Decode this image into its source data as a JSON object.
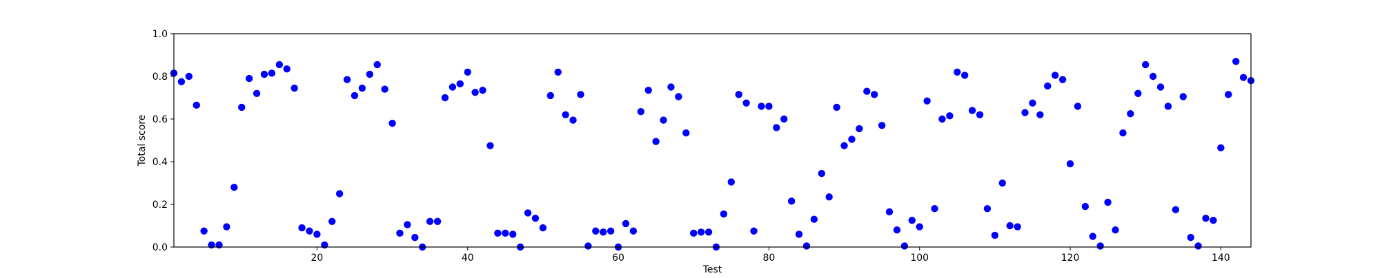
{
  "chart_data": {
    "type": "scatter",
    "title": "",
    "xlabel": "Test",
    "ylabel": "Total score",
    "xlim": [
      1,
      144
    ],
    "ylim": [
      0.0,
      1.0
    ],
    "x_ticks": [
      20,
      40,
      60,
      80,
      100,
      120,
      140
    ],
    "y_ticks": [
      0.0,
      0.2,
      0.4,
      0.6,
      0.8,
      1.0
    ],
    "y_tick_labels": [
      "0.0",
      "0.2",
      "0.4",
      "0.6",
      "0.8",
      "1.0"
    ],
    "grid": false,
    "legend": "none",
    "marker_color": "#0000ff",
    "series": [
      {
        "x": [
          1,
          2,
          3,
          4,
          5,
          6,
          7,
          8,
          9,
          10,
          11,
          12,
          13,
          14,
          15,
          16,
          17,
          18,
          19,
          20,
          21,
          22,
          23,
          24,
          25,
          26,
          27,
          28,
          29,
          30,
          31,
          32,
          33,
          34,
          35,
          36,
          37,
          38,
          39,
          40,
          41,
          42,
          43,
          44,
          45,
          46,
          47,
          48,
          49,
          50,
          51,
          52,
          53,
          54,
          55,
          56,
          57,
          58,
          59,
          60,
          61,
          62,
          63,
          64,
          65,
          66,
          67,
          68,
          69,
          70,
          71,
          72,
          73,
          74,
          75,
          76,
          77,
          78,
          79,
          80,
          81,
          82,
          83,
          84,
          85,
          86,
          87,
          88,
          89,
          90,
          91,
          92,
          93,
          94,
          95,
          96,
          97,
          98,
          99,
          100,
          101,
          102,
          103,
          104,
          105,
          106,
          107,
          108,
          109,
          110,
          111,
          112,
          113,
          114,
          115,
          116,
          117,
          118,
          119,
          120,
          121,
          122,
          123,
          124,
          125,
          126,
          127,
          128,
          129,
          130,
          131,
          132,
          133,
          134,
          135,
          136,
          137,
          138,
          139,
          140,
          141,
          142,
          143,
          144
        ],
        "y": [
          0.815,
          0.775,
          0.8,
          0.665,
          0.075,
          0.01,
          0.01,
          0.095,
          0.28,
          0.655,
          0.79,
          0.72,
          0.81,
          0.815,
          0.855,
          0.835,
          0.745,
          0.09,
          0.075,
          0.06,
          0.01,
          0.12,
          0.25,
          0.785,
          0.71,
          0.745,
          0.81,
          0.855,
          0.74,
          0.58,
          0.065,
          0.105,
          0.045,
          0.0,
          0.12,
          0.12,
          0.7,
          0.75,
          0.765,
          0.82,
          0.725,
          0.735,
          0.475,
          0.065,
          0.065,
          0.06,
          0.0,
          0.16,
          0.135,
          0.09,
          0.71,
          0.82,
          0.62,
          0.595,
          0.715,
          0.005,
          0.075,
          0.07,
          0.075,
          0.0,
          0.11,
          0.075,
          0.635,
          0.735,
          0.495,
          0.595,
          0.75,
          0.705,
          0.535,
          0.065,
          0.07,
          0.07,
          0.0,
          0.155,
          0.305,
          0.715,
          0.675,
          0.075,
          0.66,
          0.66,
          0.56,
          0.6,
          0.215,
          0.06,
          0.005,
          0.13,
          0.345,
          0.235,
          0.655,
          0.475,
          0.505,
          0.555,
          0.73,
          0.715,
          0.57,
          0.165,
          0.08,
          0.005,
          0.125,
          0.095,
          0.685,
          0.18,
          0.6,
          0.615,
          0.82,
          0.805,
          0.64,
          0.62,
          0.18,
          0.055,
          0.3,
          0.1,
          0.095,
          0.63,
          0.675,
          0.62,
          0.755,
          0.805,
          0.785,
          0.39,
          0.66,
          0.19,
          0.05,
          0.005,
          0.21,
          0.08,
          0.535,
          0.625,
          0.72,
          0.855,
          0.8,
          0.75,
          0.66,
          0.175,
          0.705,
          0.045,
          0.005,
          0.135,
          0.125,
          0.465,
          0.715,
          0.87,
          0.795,
          0.78
        ]
      }
    ]
  }
}
